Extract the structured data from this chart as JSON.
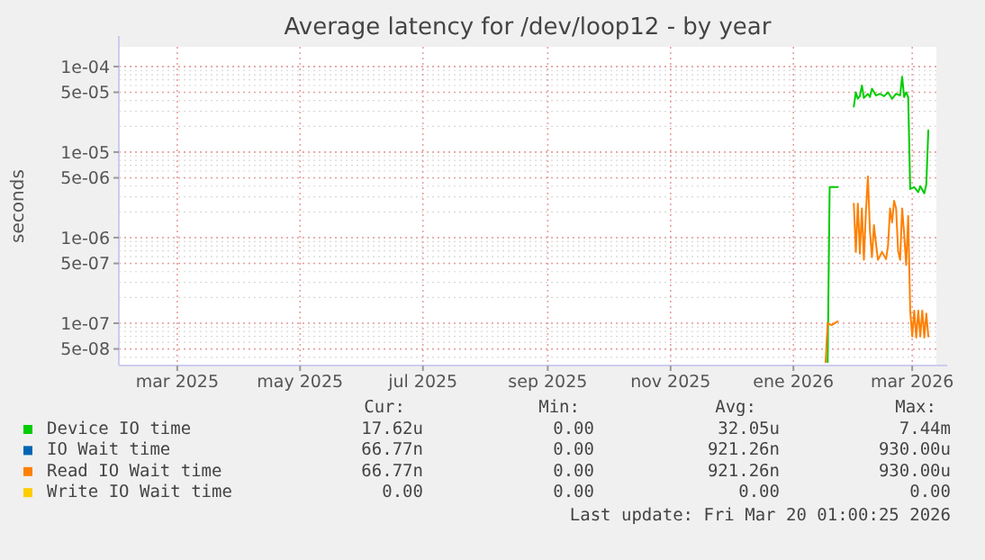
{
  "chart_data": {
    "type": "line",
    "title": "Average latency for /dev/loop12 - by year",
    "ylabel": "seconds",
    "log": true,
    "grid": true,
    "legend": "bottom",
    "marker": "none",
    "line_style": "solid",
    "xlim": [
      "2025-01-31",
      "2026-03-13"
    ],
    "xticks": [
      {
        "value": "2025-03-01",
        "label": "mar 2025"
      },
      {
        "value": "2025-05-01",
        "label": "may 2025"
      },
      {
        "value": "2025-07-01",
        "label": "jul 2025"
      },
      {
        "value": "2025-09-01",
        "label": "sep 2025"
      },
      {
        "value": "2025-11-01",
        "label": "nov 2025"
      },
      {
        "value": "2026-01-01",
        "label": "ene 2026"
      },
      {
        "value": "2026-03-01",
        "label": "mar 2026"
      }
    ],
    "ylim": [
      3.2e-08,
      0.00017
    ],
    "yticks": [
      {
        "value": 5e-08,
        "label": "5e-08"
      },
      {
        "value": 1e-07,
        "label": "1e-07"
      },
      {
        "value": 5e-07,
        "label": "5e-07"
      },
      {
        "value": 1e-06,
        "label": "1e-06"
      },
      {
        "value": 5e-06,
        "label": "5e-06"
      },
      {
        "value": 1e-05,
        "label": "1e-05"
      },
      {
        "value": 5e-05,
        "label": "5e-05"
      },
      {
        "value": 0.0001,
        "label": "1e-04"
      }
    ],
    "series": [
      {
        "name": "Device IO time",
        "color": "#00cc00",
        "x": [
          "2026-01-18",
          "2026-01-19",
          "2026-01-23",
          "2026-01-27",
          "2026-01-31",
          "2026-02-01",
          "2026-02-02",
          "2026-02-03",
          "2026-02-04",
          "2026-02-05",
          "2026-02-07",
          "2026-02-08",
          "2026-02-09",
          "2026-02-11",
          "2026-02-13",
          "2026-02-15",
          "2026-02-17",
          "2026-02-19",
          "2026-02-21",
          "2026-02-23",
          "2026-02-24",
          "2026-02-25",
          "2026-02-26",
          "2026-02-27",
          "2026-02-28",
          "2026-03-02",
          "2026-03-04",
          "2026-03-05",
          "2026-03-07",
          "2026-03-08",
          "2026-03-09"
        ],
        "values": [
          3.5e-08,
          3.9e-06,
          3.9e-06,
          null,
          3.4e-05,
          5e-05,
          4.2e-05,
          4.5e-05,
          6e-05,
          4.3e-05,
          4.8e-05,
          4.4e-05,
          5.5e-05,
          4.6e-05,
          4.8e-05,
          4.5e-05,
          5e-05,
          4.2e-05,
          4.8e-05,
          4.6e-05,
          7.6e-05,
          4.4e-05,
          5e-05,
          4.4e-05,
          3.7e-06,
          3.9e-06,
          3.4e-06,
          4e-06,
          3.3e-06,
          4.2e-06,
          1.8e-05
        ]
      },
      {
        "name": "IO Wait time",
        "color": "#0066b3"
      },
      {
        "name": "Read IO Wait time",
        "color": "#ff8000",
        "x": [
          "2026-01-17",
          "2026-01-18",
          "2026-01-20",
          "2026-01-23",
          "2026-01-27",
          "2026-01-31",
          "2026-02-01",
          "2026-02-02",
          "2026-02-03",
          "2026-02-04",
          "2026-02-05",
          "2026-02-06",
          "2026-02-07",
          "2026-02-08",
          "2026-02-09",
          "2026-02-10",
          "2026-02-11",
          "2026-02-12",
          "2026-02-14",
          "2026-02-16",
          "2026-02-17",
          "2026-02-18",
          "2026-02-19",
          "2026-02-20",
          "2026-02-21",
          "2026-02-22",
          "2026-02-23",
          "2026-02-24",
          "2026-02-25",
          "2026-02-26",
          "2026-02-27",
          "2026-02-28",
          "2026-03-01",
          "2026-03-02",
          "2026-03-03",
          "2026-03-04",
          "2026-03-05",
          "2026-03-06",
          "2026-03-07",
          "2026-03-08",
          "2026-03-09"
        ],
        "values": [
          3.5e-08,
          1e-07,
          9.5e-08,
          1.05e-07,
          null,
          2.5e-06,
          6.8e-07,
          2.5e-06,
          6.5e-07,
          2.2e-06,
          5.5e-07,
          2e-06,
          5.2e-06,
          1.2e-06,
          5.9e-07,
          1.4e-06,
          8.5e-07,
          5.5e-07,
          6.8e-07,
          5.6e-07,
          8e-07,
          2.2e-06,
          1.5e-06,
          2.7e-06,
          2.2e-06,
          7e-07,
          5.5e-07,
          2.2e-06,
          1.1e-06,
          4.8e-07,
          1.8e-06,
          1.4e-07,
          7e-08,
          1.4e-07,
          6.8e-08,
          1.4e-07,
          7e-08,
          1.4e-07,
          6.8e-08,
          1.3e-07,
          7e-08
        ]
      },
      {
        "name": "Write IO Wait time",
        "color": "#ffcc00"
      }
    ],
    "annotations": [
      "Cur:",
      "Min:",
      "Avg:",
      "Max:",
      "17.62u",
      "0.00",
      "32.05u",
      "7.44m",
      "66.77n",
      "0.00",
      "921.26n",
      "930.00u",
      "66.77n",
      "0.00",
      "921.26n",
      "930.00u",
      "0.00",
      "0.00",
      "0.00",
      "0.00",
      "Last update: Fri Mar 20 01:00:25 2026"
    ]
  }
}
